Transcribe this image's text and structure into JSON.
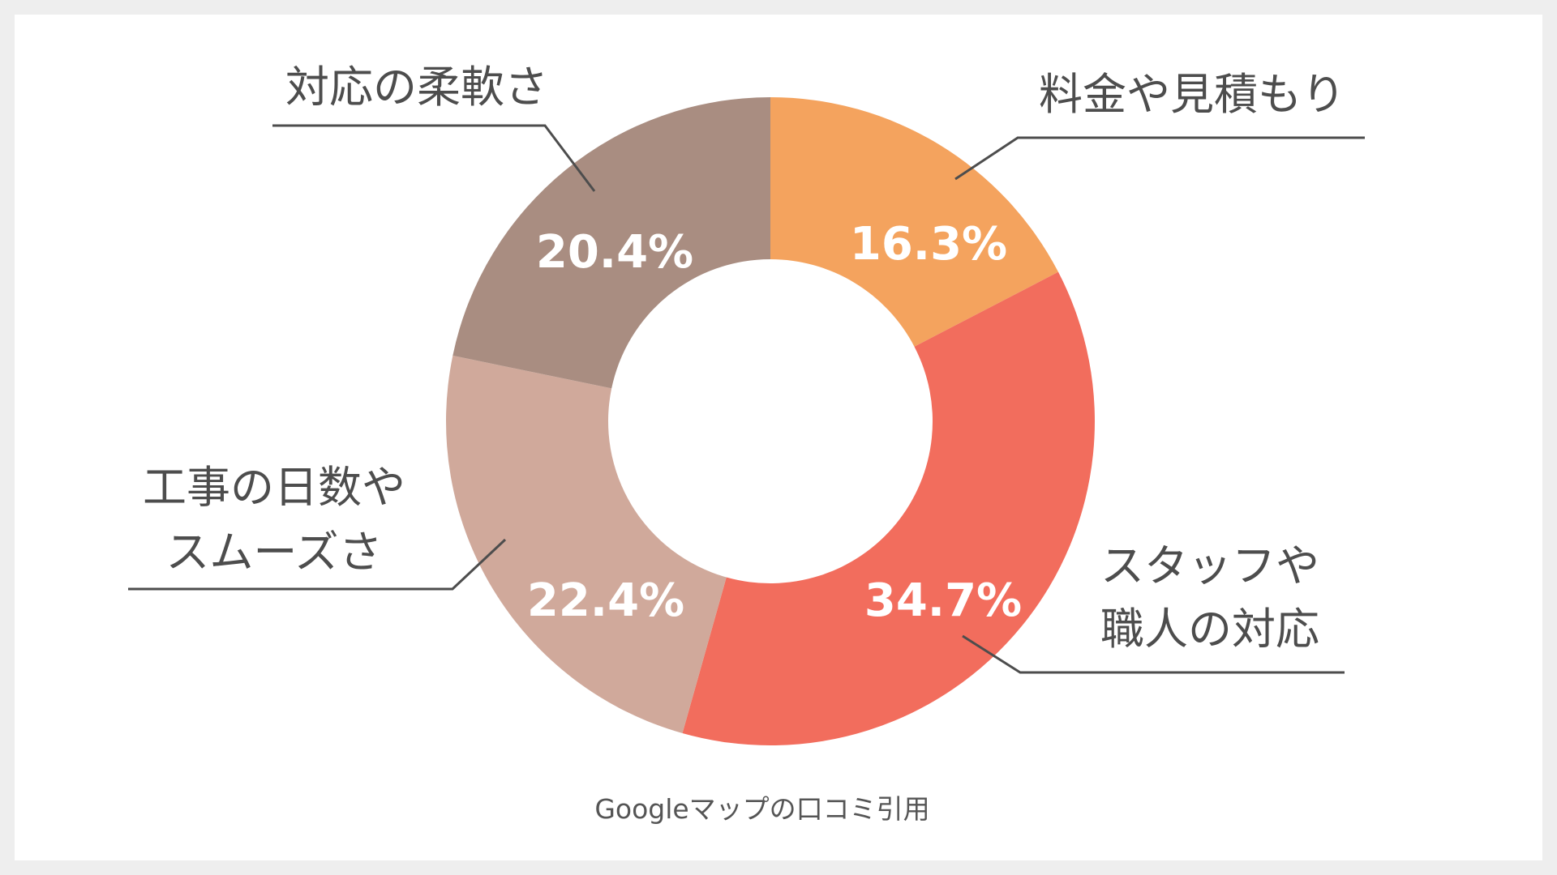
{
  "chart_data": {
    "type": "pie",
    "donut": true,
    "categories": [
      "料金や見積もり",
      "スタッフや職人の対応",
      "工事の日数やスムーズさ",
      "対応の柔軟さ"
    ],
    "values": [
      16.3,
      34.7,
      22.4,
      20.4
    ],
    "value_labels": [
      "16.3%",
      "34.7%",
      "22.4%",
      "20.4%"
    ],
    "colors": [
      "#f4a35e",
      "#f26d5d",
      "#d0a99b",
      "#a98d81"
    ],
    "labels": [
      {
        "lines": [
          "料金や見積もり"
        ]
      },
      {
        "lines": [
          "スタッフや",
          "職人の対応"
        ]
      },
      {
        "lines": [
          "工事の日数や",
          "スムーズさ"
        ]
      },
      {
        "lines": [
          "対応の柔軟さ"
        ]
      }
    ],
    "start_angle": "12 o'clock",
    "direction": "clockwise",
    "legend": "none"
  },
  "source_note": "Googleマップの口コミ引用"
}
